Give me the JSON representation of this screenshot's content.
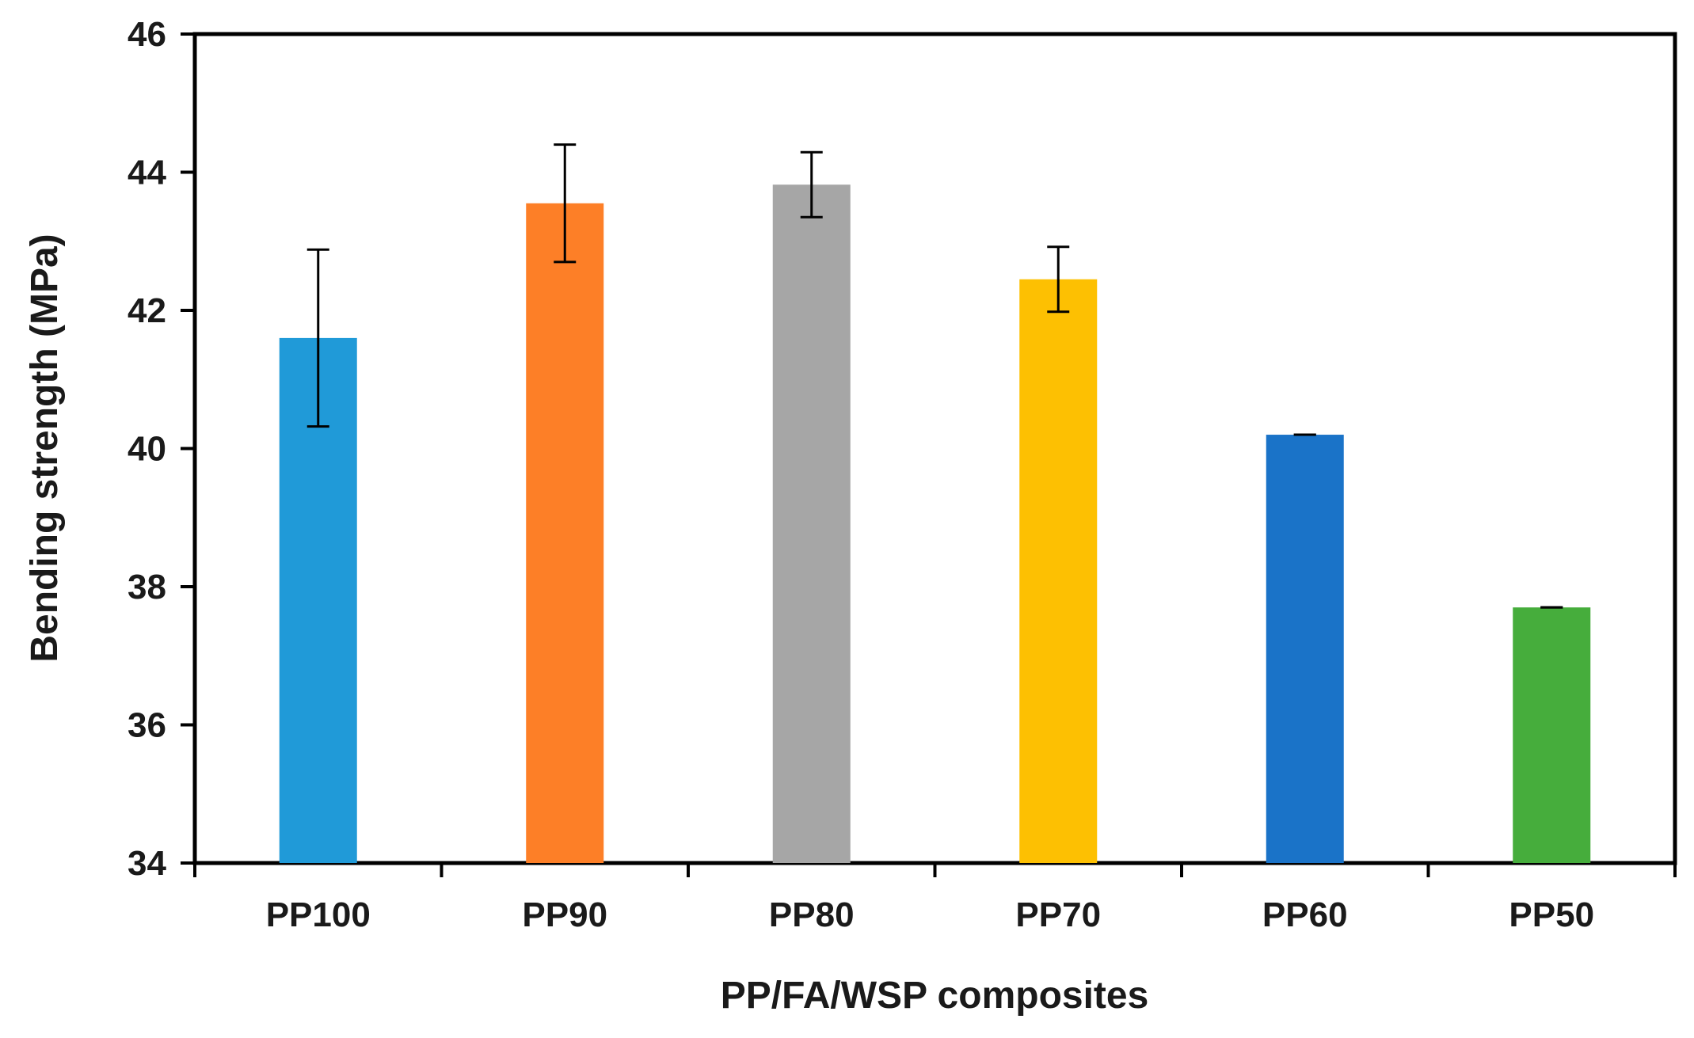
{
  "chart_data": {
    "type": "bar",
    "title": "",
    "xlabel": "PP/FA/WSP composites",
    "ylabel": "Bending strength (MPa)",
    "categories": [
      "PP100",
      "PP90",
      "PP80",
      "PP70",
      "PP60",
      "PP50"
    ],
    "values": [
      41.6,
      43.55,
      43.82,
      42.45,
      40.2,
      37.7
    ],
    "errors": [
      1.28,
      0.85,
      0.47,
      0.47,
      0.0,
      0.0
    ],
    "colors": [
      "#209ad8",
      "#fd7f27",
      "#a6a6a6",
      "#fdc002",
      "#1a73c8",
      "#46ad3c"
    ],
    "ylim": [
      34,
      46
    ],
    "yticks": [
      34,
      36,
      38,
      40,
      42,
      44,
      46
    ],
    "grid": false,
    "legend": "none"
  }
}
